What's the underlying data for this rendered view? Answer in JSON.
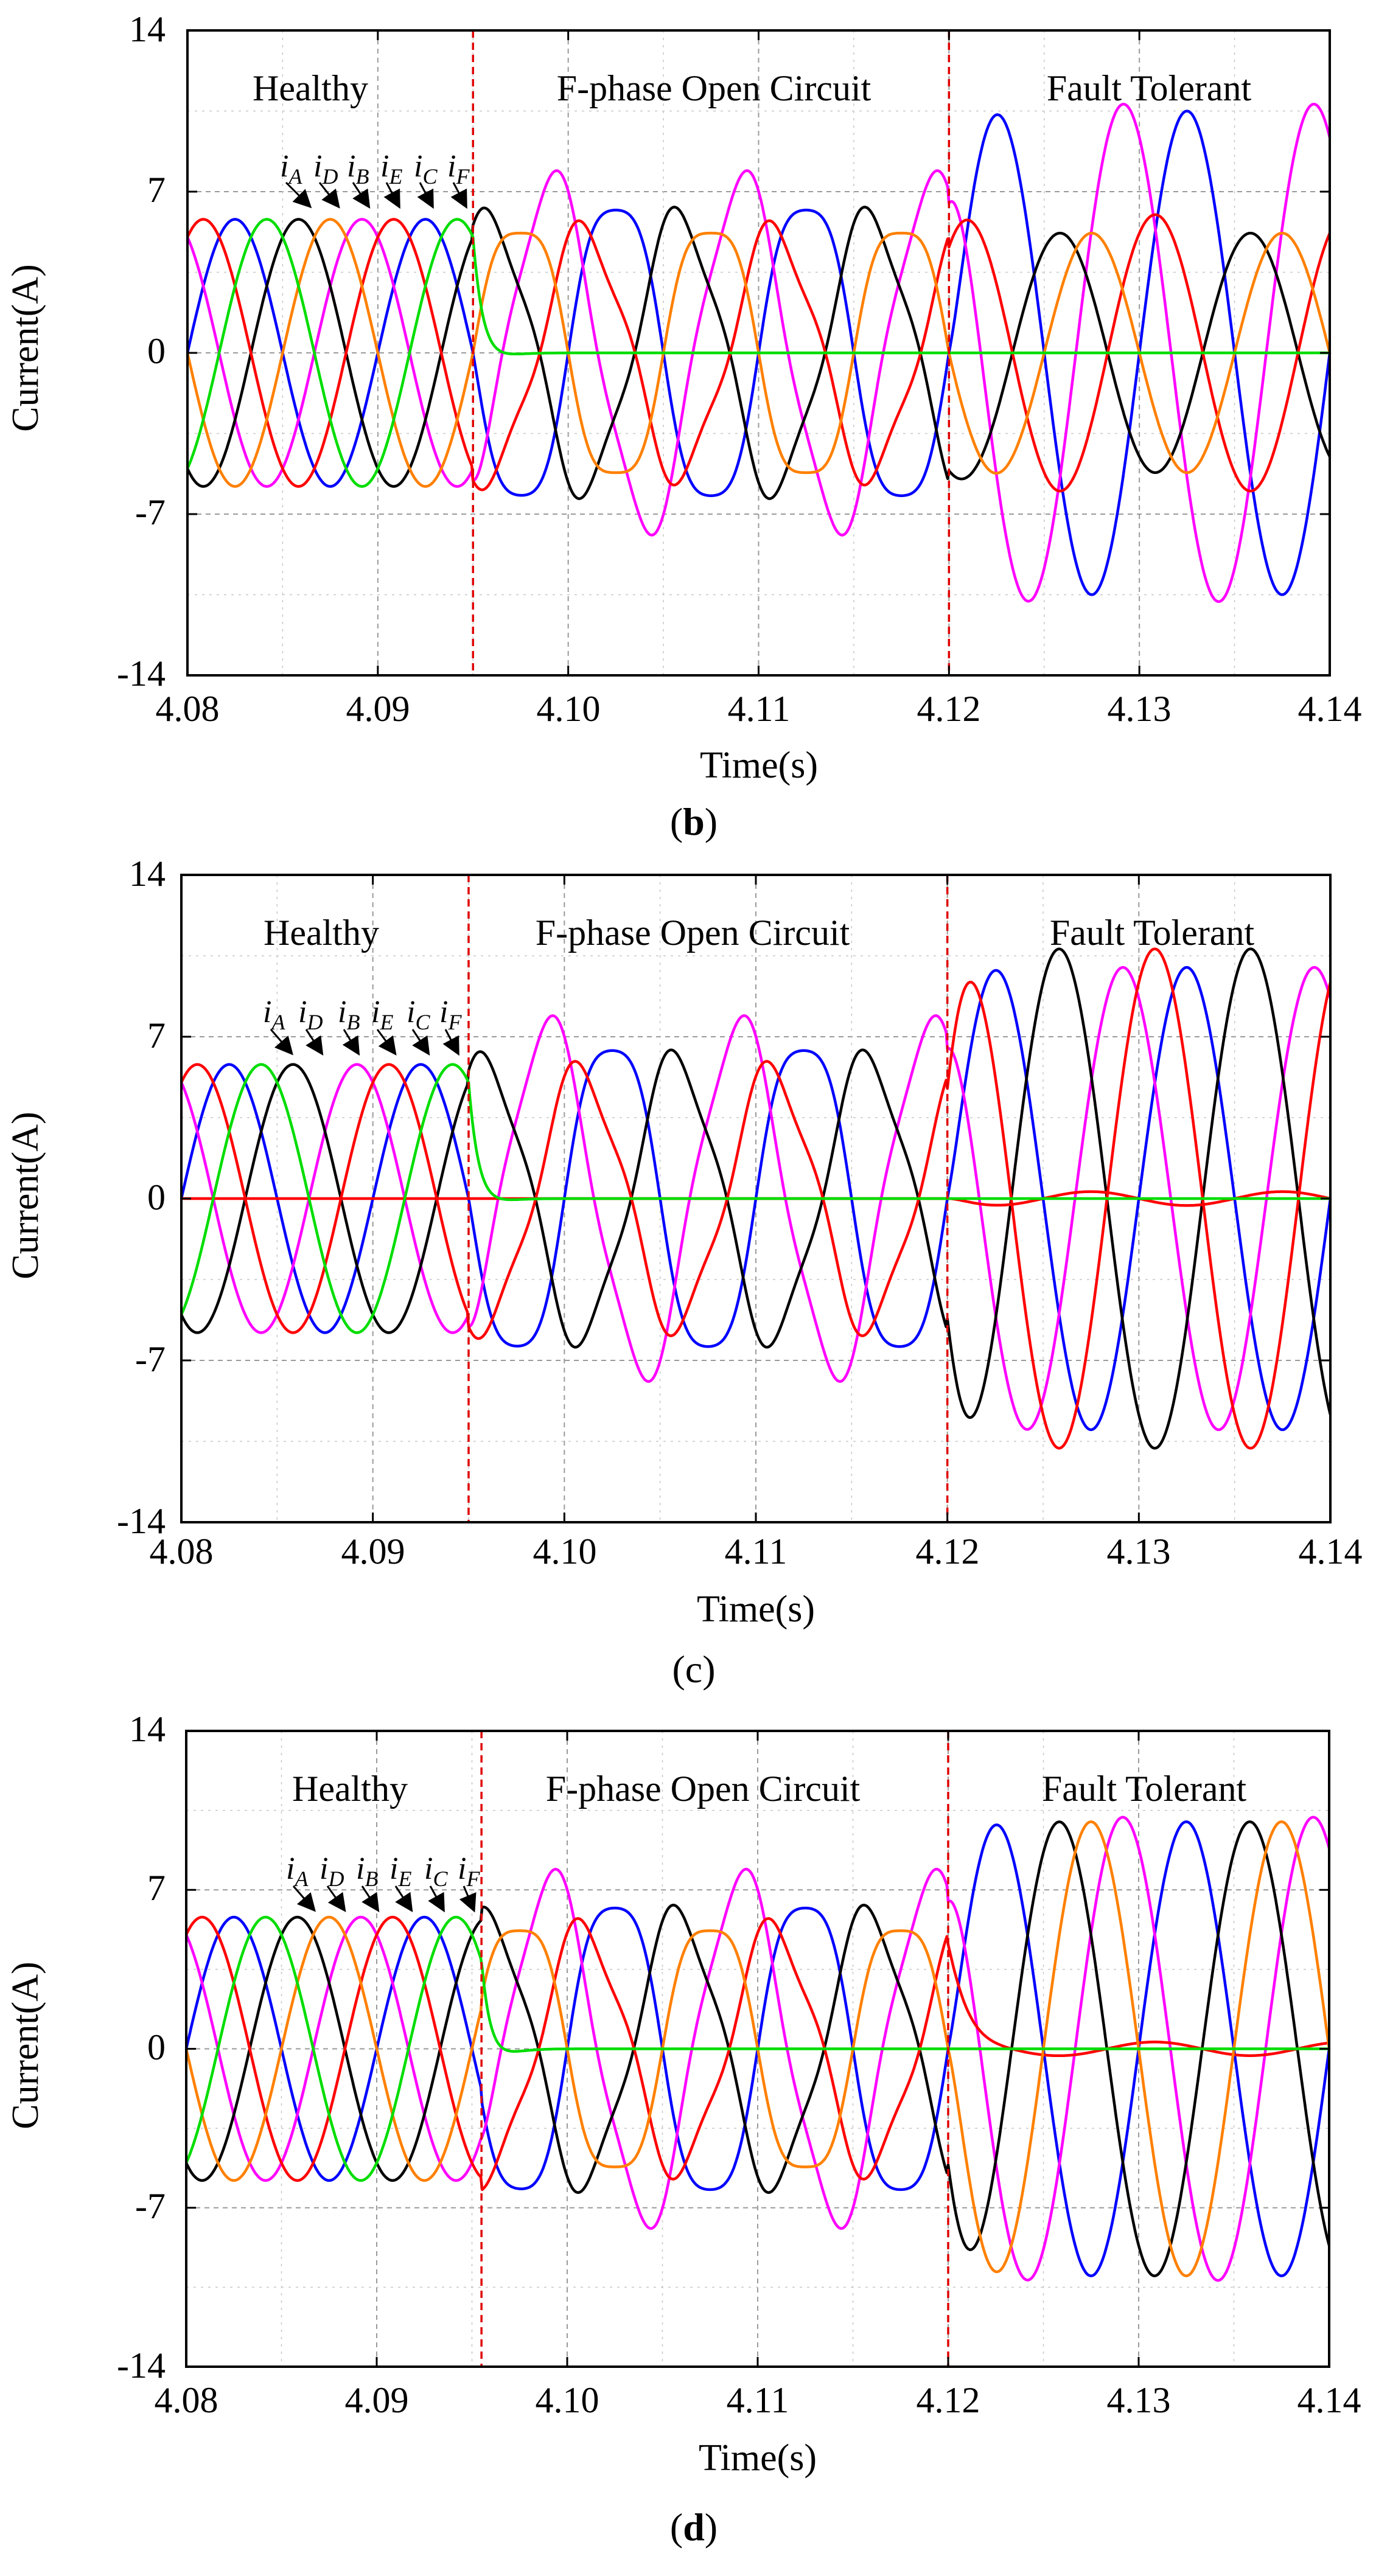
{
  "chart_data": [
    {
      "type": "line",
      "panel_label": "b",
      "title": "",
      "xlabel": "Time(s)",
      "ylabel": "Current(A)",
      "xlim": [
        4.08,
        4.14
      ],
      "ylim": [
        -14,
        14
      ],
      "x_ticks": [
        "4.08",
        "4.09",
        "4.10",
        "4.11",
        "4.12",
        "4.13",
        "4.14"
      ],
      "y_ticks": [
        "14",
        "7",
        "0",
        "-7",
        "-14"
      ],
      "grid": true,
      "fault_times": [
        4.095,
        4.12
      ],
      "regions": [
        "Healthy",
        "F-phase Open Circuit",
        "Fault Tolerant"
      ],
      "legend_labels": [
        "i_A",
        "i_D",
        "i_B",
        "i_E",
        "i_C",
        "i_F"
      ],
      "frequency_hz": 100,
      "series": [
        {
          "name": "i_A",
          "color": "#0000ff",
          "phase_deg": 0,
          "amplitude": [
            5.8,
            6.8,
            10.5
          ]
        },
        {
          "name": "i_B",
          "color": "#ff00ff",
          "phase_deg": 120,
          "amplitude": [
            5.8,
            7.5,
            10.8
          ]
        },
        {
          "name": "i_C",
          "color": "#000000",
          "phase_deg": 240,
          "amplitude": [
            5.8,
            5.9,
            5.2
          ]
        },
        {
          "name": "i_D",
          "color": "#ff0000",
          "phase_deg": 60,
          "amplitude": [
            5.8,
            5.3,
            6.0
          ]
        },
        {
          "name": "i_E",
          "color": "#ff8000",
          "phase_deg": 180,
          "amplitude": [
            5.8,
            5.8,
            5.2
          ]
        },
        {
          "name": "i_F",
          "color": "#00dd00",
          "phase_deg": 300,
          "amplitude": [
            5.8,
            0,
            0
          ]
        }
      ]
    },
    {
      "type": "line",
      "panel_label": "c",
      "title": "",
      "xlabel": "Time(s)",
      "ylabel": "Current(A)",
      "xlim": [
        4.08,
        4.14
      ],
      "ylim": [
        -14,
        14
      ],
      "x_ticks": [
        "4.08",
        "4.09",
        "4.10",
        "4.11",
        "4.12",
        "4.13",
        "4.14"
      ],
      "y_ticks": [
        "14",
        "7",
        "0",
        "-7",
        "-14"
      ],
      "grid": true,
      "fault_times": [
        4.095,
        4.12
      ],
      "regions": [
        "Healthy",
        "F-phase Open Circuit",
        "Fault Tolerant"
      ],
      "legend_labels": [
        "i_A",
        "i_D",
        "i_B",
        "i_E",
        "i_C",
        "i_F"
      ],
      "frequency_hz": 100,
      "series": [
        {
          "name": "i_A",
          "color": "#0000ff",
          "phase_deg": 0,
          "amplitude": [
            5.8,
            7.0,
            10.0
          ]
        },
        {
          "name": "i_B",
          "color": "#ff00ff",
          "phase_deg": 120,
          "amplitude": [
            5.8,
            7.5,
            10.0
          ]
        },
        {
          "name": "i_C",
          "color": "#000000",
          "phase_deg": 240,
          "amplitude": [
            5.8,
            6.0,
            10.8
          ]
        },
        {
          "name": "i_D",
          "color": "#ff0000",
          "phase_deg": 60,
          "amplitude": [
            5.8,
            5.5,
            10.8
          ]
        },
        {
          "name": "i_E",
          "color": "#ff0000",
          "phase_deg": 180,
          "amplitude": [
            0,
            0,
            0.3
          ]
        },
        {
          "name": "i_F",
          "color": "#00dd00",
          "phase_deg": 300,
          "amplitude": [
            5.8,
            0,
            0
          ]
        }
      ]
    },
    {
      "type": "line",
      "panel_label": "d",
      "title": "",
      "xlabel": "Time(s)",
      "ylabel": "Current(A)",
      "xlim": [
        4.08,
        4.14
      ],
      "ylim": [
        -14,
        14
      ],
      "x_ticks": [
        "4.08",
        "4.09",
        "4.10",
        "4.11",
        "4.12",
        "4.13",
        "4.14"
      ],
      "y_ticks": [
        "14",
        "7",
        "0",
        "-7",
        "-14"
      ],
      "grid": true,
      "fault_times": [
        4.0955,
        4.12
      ],
      "regions": [
        "Healthy",
        "F-phase Open Circuit",
        "Fault Tolerant"
      ],
      "legend_labels": [
        "i_A",
        "i_D",
        "i_B",
        "i_E",
        "i_C",
        "i_F"
      ],
      "frequency_hz": 100,
      "series": [
        {
          "name": "i_A",
          "color": "#0000ff",
          "phase_deg": 0,
          "amplitude": [
            5.8,
            6.8,
            10.0
          ]
        },
        {
          "name": "i_B",
          "color": "#ff00ff",
          "phase_deg": 120,
          "amplitude": [
            5.8,
            7.5,
            10.2
          ]
        },
        {
          "name": "i_C",
          "color": "#000000",
          "phase_deg": 240,
          "amplitude": [
            5.8,
            5.9,
            10.0
          ]
        },
        {
          "name": "i_D",
          "color": "#ff0000",
          "phase_deg": 60,
          "amplitude": [
            5.8,
            5.3,
            0.3
          ]
        },
        {
          "name": "i_E",
          "color": "#ff8000",
          "phase_deg": 180,
          "amplitude": [
            5.8,
            5.8,
            10.0
          ]
        },
        {
          "name": "i_F",
          "color": "#00dd00",
          "phase_deg": 300,
          "amplitude": [
            5.8,
            0,
            0
          ]
        }
      ]
    }
  ]
}
